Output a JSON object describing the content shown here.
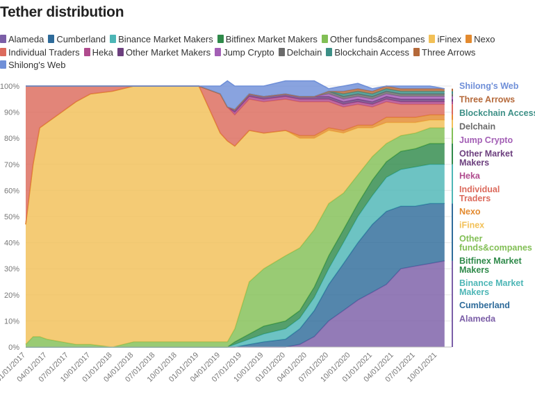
{
  "chart_data": {
    "type": "area",
    "stacked": true,
    "title": "Tether distribution",
    "xlabel": "",
    "ylabel": "",
    "ylim": [
      0,
      100
    ],
    "y_unit": "%",
    "y_ticks": [
      "0%",
      "10%",
      "20%",
      "30%",
      "40%",
      "50%",
      "60%",
      "70%",
      "80%",
      "90%",
      "100%"
    ],
    "x_ticks": [
      "01/01/2017",
      "04/01/2017",
      "07/01/2017",
      "10/01/2017",
      "01/01/2018",
      "04/01/2018",
      "07/01/2018",
      "10/01/2018",
      "01/01/2019",
      "04/01/2019",
      "07/01/2019",
      "10/01/2019",
      "01/01/2020",
      "04/01/2020",
      "07/01/2020",
      "10/01/2020",
      "01/01/2021",
      "04/01/2021",
      "07/01/2021",
      "10/01/2021"
    ],
    "x": [
      "2017-01-01",
      "2017-02-01",
      "2017-03-01",
      "2017-04-01",
      "2017-06-01",
      "2017-08-01",
      "2017-10-01",
      "2018-01-01",
      "2018-04-01",
      "2018-07-01",
      "2019-01-01",
      "2019-04-01",
      "2019-05-01",
      "2019-06-01",
      "2019-08-01",
      "2019-10-01",
      "2020-01-01",
      "2020-03-01",
      "2020-05-01",
      "2020-07-01",
      "2020-09-01",
      "2020-11-01",
      "2021-01-01",
      "2021-03-01",
      "2021-05-01",
      "2021-07-01",
      "2021-09-01",
      "2021-11-01"
    ],
    "series": [
      {
        "name": "Alameda",
        "color": "#7b5ea7",
        "values": [
          0,
          0,
          0,
          0,
          0,
          0,
          0,
          0,
          0,
          0,
          0,
          0,
          0,
          0,
          0,
          0,
          0,
          1,
          4,
          10,
          14,
          18,
          21,
          24,
          30,
          31,
          32,
          33
        ]
      },
      {
        "name": "Cumberland",
        "color": "#2e6b9a",
        "values": [
          0,
          0,
          0,
          0,
          0,
          0,
          0,
          0,
          0,
          0,
          0,
          0,
          0,
          0,
          1,
          2,
          3,
          6,
          10,
          14,
          18,
          22,
          26,
          28,
          24,
          23,
          23,
          22
        ]
      },
      {
        "name": "Binance Market Makers",
        "color": "#4db6b6",
        "values": [
          0,
          0,
          0,
          0,
          0,
          0,
          0,
          0,
          0,
          0,
          0,
          0,
          0,
          1,
          2,
          3,
          4,
          4,
          5,
          6,
          8,
          10,
          11,
          13,
          14,
          15,
          15,
          15
        ]
      },
      {
        "name": "Bitfinex Market Makers",
        "color": "#2f8a4a",
        "values": [
          0,
          0,
          0,
          0,
          0,
          0,
          0,
          0,
          0,
          0,
          0,
          0,
          0,
          1,
          2,
          3,
          3,
          3,
          4,
          5,
          5,
          5,
          6,
          6,
          7,
          7,
          8,
          8
        ]
      },
      {
        "name": "Other funds&companes",
        "color": "#82bf55",
        "values": [
          1,
          4,
          4,
          3,
          2,
          1,
          1,
          0,
          2,
          2,
          2,
          2,
          2,
          5,
          20,
          22,
          25,
          24,
          22,
          20,
          14,
          11,
          9,
          7,
          6,
          6,
          6,
          6
        ]
      },
      {
        "name": "iFinex",
        "color": "#f2c057",
        "values": [
          46,
          66,
          80,
          83,
          88,
          93,
          96,
          98,
          98,
          98,
          98,
          80,
          77,
          70,
          58,
          52,
          48,
          42,
          35,
          28,
          23,
          18,
          11,
          8,
          5,
          4,
          3,
          3
        ]
      },
      {
        "name": "Nexo",
        "color": "#e38a2f",
        "values": [
          0,
          0,
          0,
          0,
          0,
          0,
          0,
          0,
          0,
          0,
          0,
          0,
          0,
          0,
          0,
          0,
          0,
          1,
          1,
          1,
          1,
          1,
          1,
          2,
          2,
          2,
          2,
          2
        ]
      },
      {
        "name": "Individual Traders",
        "color": "#dc6a5c",
        "values": [
          53,
          30,
          16,
          14,
          10,
          6,
          3,
          2,
          0,
          0,
          0,
          15,
          13,
          12,
          12,
          12,
          12,
          13,
          13,
          10,
          9,
          8,
          7,
          6,
          5,
          5,
          4,
          4
        ]
      },
      {
        "name": "Heka",
        "color": "#b04b8e",
        "values": [
          0,
          0,
          0,
          0,
          0,
          0,
          0,
          0,
          0,
          0,
          0,
          0,
          0,
          1,
          1,
          1,
          1,
          1,
          1,
          1,
          1,
          1,
          1,
          1,
          1,
          1,
          1,
          1
        ]
      },
      {
        "name": "Other Market Makers",
        "color": "#6c3f7e",
        "values": [
          0,
          0,
          0,
          0,
          0,
          0,
          0,
          0,
          0,
          0,
          0,
          0,
          0,
          1,
          1,
          1,
          1,
          1,
          1,
          1,
          1,
          1,
          1,
          1,
          1,
          1,
          1,
          1
        ]
      },
      {
        "name": "Jump Crypto",
        "color": "#a35fb5",
        "values": [
          0,
          0,
          0,
          0,
          0,
          0,
          0,
          0,
          0,
          0,
          0,
          0,
          0,
          0,
          0,
          0,
          0,
          0,
          0,
          1,
          1,
          1,
          1,
          1,
          1,
          1,
          1,
          1
        ]
      },
      {
        "name": "Delchain",
        "color": "#6a6a6a",
        "values": [
          0,
          0,
          0,
          0,
          0,
          0,
          0,
          0,
          0,
          0,
          0,
          0,
          0,
          0,
          0,
          0,
          0,
          0,
          0,
          1,
          1,
          1,
          1,
          1,
          1,
          1,
          1,
          1
        ]
      },
      {
        "name": "Blockchain Access",
        "color": "#3c8f86",
        "values": [
          0,
          0,
          0,
          0,
          0,
          0,
          0,
          0,
          0,
          0,
          0,
          0,
          0,
          0,
          0,
          0,
          0,
          0,
          0,
          0,
          1,
          1,
          1,
          1,
          1,
          1,
          1,
          1
        ]
      },
      {
        "name": "Three Arrows",
        "color": "#b5693a",
        "values": [
          0,
          0,
          0,
          0,
          0,
          0,
          0,
          0,
          0,
          0,
          0,
          0,
          0,
          0,
          0,
          0,
          0,
          0,
          0,
          0,
          1,
          1,
          1,
          1,
          1,
          1,
          1,
          1
        ]
      },
      {
        "name": "Shilong's Web",
        "color": "#6f8fd8",
        "values": [
          0,
          0,
          0,
          0,
          0,
          0,
          0,
          0,
          0,
          0,
          0,
          3,
          10,
          9,
          3,
          4,
          5,
          6,
          6,
          1,
          2,
          2,
          1,
          0,
          1,
          1,
          1,
          0
        ]
      }
    ],
    "end_labels_order": [
      "Shilong's Web",
      "Three Arrows",
      "Blockchain Access",
      "Delchain",
      "Jump Crypto",
      "Other Market Makers",
      "Heka",
      "Individual Traders",
      "Nexo",
      "iFinex",
      "Other funds&companes",
      "Bitfinex Market Makers",
      "Binance Market Makers",
      "Cumberland",
      "Alameda"
    ],
    "grid": true,
    "legend_position": "top-left"
  }
}
